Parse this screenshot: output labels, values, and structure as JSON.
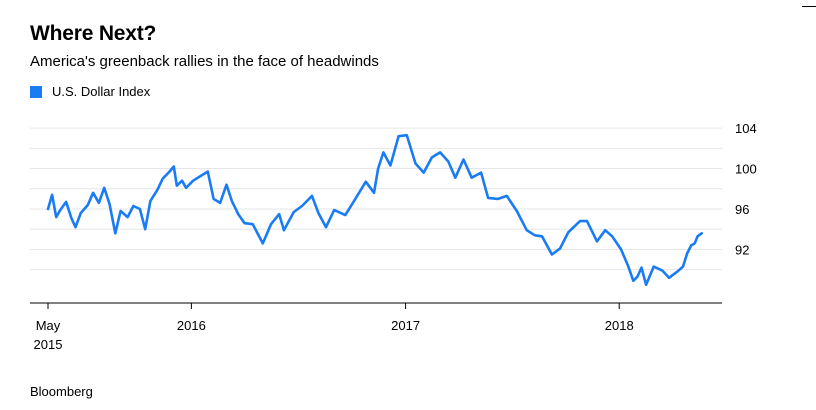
{
  "title": "Where Next?",
  "subtitle": "America's greenback rallies in the face of headwinds",
  "source": "Bloomberg",
  "colors": {
    "series": "#1a7cf5",
    "grid": "#e6e6e6",
    "axis": "#000000"
  },
  "chart_data": {
    "type": "line",
    "title": "Where Next?",
    "subtitle": "America's greenback rallies in the face of headwinds",
    "xlabel": "",
    "ylabel": "",
    "ylim": [
      87,
      105
    ],
    "xlim": [
      "2015-05-01",
      "2018-05-31"
    ],
    "y_ticks": [
      92,
      96,
      100,
      104
    ],
    "x_ticks": [
      {
        "date": "2015-05-01",
        "label": "May",
        "sublabel": "2015"
      },
      {
        "date": "2016-01-01",
        "label": "2016",
        "sublabel": ""
      },
      {
        "date": "2017-01-01",
        "label": "2017",
        "sublabel": ""
      },
      {
        "date": "2018-01-01",
        "label": "2018",
        "sublabel": ""
      }
    ],
    "grid": true,
    "legend_position": "top-left",
    "series": [
      {
        "name": "U.S. Dollar Index",
        "points": [
          [
            "2015-05-01",
            96.0
          ],
          [
            "2015-05-08",
            97.4
          ],
          [
            "2015-05-15",
            95.2
          ],
          [
            "2015-05-22",
            95.9
          ],
          [
            "2015-06-01",
            96.7
          ],
          [
            "2015-06-10",
            95.1
          ],
          [
            "2015-06-17",
            94.2
          ],
          [
            "2015-06-26",
            95.6
          ],
          [
            "2015-07-08",
            96.4
          ],
          [
            "2015-07-17",
            97.6
          ],
          [
            "2015-07-27",
            96.6
          ],
          [
            "2015-08-05",
            98.1
          ],
          [
            "2015-08-14",
            96.5
          ],
          [
            "2015-08-24",
            93.6
          ],
          [
            "2015-09-02",
            95.8
          ],
          [
            "2015-09-14",
            95.2
          ],
          [
            "2015-09-24",
            96.3
          ],
          [
            "2015-10-05",
            96.0
          ],
          [
            "2015-10-14",
            94.0
          ],
          [
            "2015-10-23",
            96.8
          ],
          [
            "2015-11-04",
            97.9
          ],
          [
            "2015-11-13",
            99.0
          ],
          [
            "2015-11-23",
            99.6
          ],
          [
            "2015-12-02",
            100.2
          ],
          [
            "2015-12-07",
            98.3
          ],
          [
            "2015-12-16",
            98.8
          ],
          [
            "2015-12-23",
            98.1
          ],
          [
            "2016-01-04",
            98.8
          ],
          [
            "2016-01-15",
            99.2
          ],
          [
            "2016-01-29",
            99.7
          ],
          [
            "2016-02-08",
            97.0
          ],
          [
            "2016-02-19",
            96.6
          ],
          [
            "2016-03-01",
            98.4
          ],
          [
            "2016-03-10",
            96.8
          ],
          [
            "2016-03-21",
            95.5
          ],
          [
            "2016-04-01",
            94.6
          ],
          [
            "2016-04-15",
            94.5
          ],
          [
            "2016-05-02",
            92.6
          ],
          [
            "2016-05-16",
            94.5
          ],
          [
            "2016-05-30",
            95.5
          ],
          [
            "2016-06-07",
            93.9
          ],
          [
            "2016-06-24",
            95.7
          ],
          [
            "2016-07-08",
            96.3
          ],
          [
            "2016-07-25",
            97.3
          ],
          [
            "2016-08-05",
            95.6
          ],
          [
            "2016-08-18",
            94.2
          ],
          [
            "2016-09-01",
            95.9
          ],
          [
            "2016-09-20",
            95.4
          ],
          [
            "2016-10-05",
            96.8
          ],
          [
            "2016-10-25",
            98.7
          ],
          [
            "2016-11-08",
            97.6
          ],
          [
            "2016-11-15",
            100.0
          ],
          [
            "2016-11-24",
            101.6
          ],
          [
            "2016-12-06",
            100.3
          ],
          [
            "2016-12-20",
            103.2
          ],
          [
            "2017-01-03",
            103.3
          ],
          [
            "2017-01-18",
            100.5
          ],
          [
            "2017-02-01",
            99.6
          ],
          [
            "2017-02-15",
            101.1
          ],
          [
            "2017-03-01",
            101.6
          ],
          [
            "2017-03-15",
            100.7
          ],
          [
            "2017-03-27",
            99.1
          ],
          [
            "2017-04-10",
            100.9
          ],
          [
            "2017-04-24",
            99.1
          ],
          [
            "2017-05-10",
            99.6
          ],
          [
            "2017-05-22",
            97.1
          ],
          [
            "2017-06-08",
            97.0
          ],
          [
            "2017-06-23",
            97.3
          ],
          [
            "2017-07-10",
            95.8
          ],
          [
            "2017-07-27",
            93.9
          ],
          [
            "2017-08-10",
            93.4
          ],
          [
            "2017-08-22",
            93.3
          ],
          [
            "2017-09-08",
            91.5
          ],
          [
            "2017-09-22",
            92.1
          ],
          [
            "2017-10-06",
            93.7
          ],
          [
            "2017-10-26",
            94.8
          ],
          [
            "2017-11-07",
            94.8
          ],
          [
            "2017-11-24",
            92.8
          ],
          [
            "2017-12-08",
            93.9
          ],
          [
            "2017-12-20",
            93.3
          ],
          [
            "2018-01-04",
            92.0
          ],
          [
            "2018-01-16",
            90.4
          ],
          [
            "2018-01-25",
            88.9
          ],
          [
            "2018-02-01",
            89.3
          ],
          [
            "2018-02-08",
            90.2
          ],
          [
            "2018-02-16",
            88.5
          ],
          [
            "2018-03-01",
            90.3
          ],
          [
            "2018-03-16",
            89.9
          ],
          [
            "2018-03-27",
            89.2
          ],
          [
            "2018-04-10",
            89.8
          ],
          [
            "2018-04-20",
            90.3
          ],
          [
            "2018-04-27",
            91.6
          ],
          [
            "2018-05-04",
            92.4
          ],
          [
            "2018-05-10",
            92.6
          ],
          [
            "2018-05-15",
            93.3
          ],
          [
            "2018-05-22",
            93.6
          ]
        ]
      }
    ]
  }
}
